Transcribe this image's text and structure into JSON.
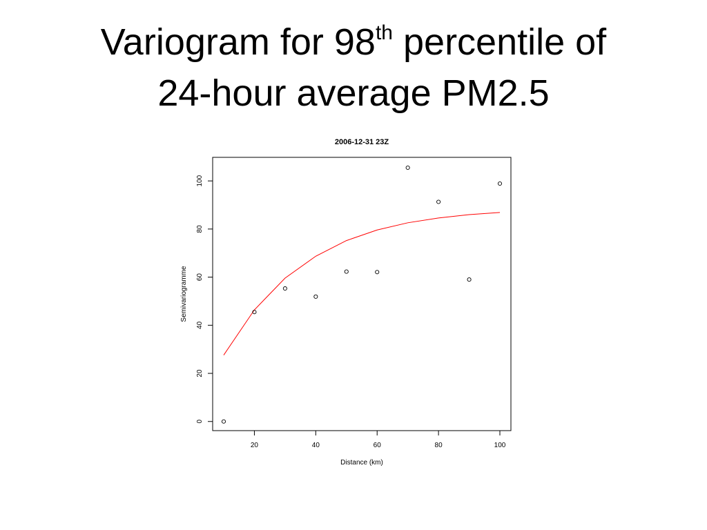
{
  "slide": {
    "title_part1": "Variogram for 98",
    "title_sup": "th",
    "title_part2": " percentile of",
    "title_line2": "24-hour average PM2.5"
  },
  "chart_data": {
    "type": "scatter",
    "title": "2006-12-31 23Z",
    "xlabel": "Distance (km)",
    "ylabel": "Semivariogramme",
    "xlim": [
      6.4,
      103.6
    ],
    "ylim": [
      -3.8,
      109.8
    ],
    "x_ticks": [
      20,
      40,
      60,
      80,
      100
    ],
    "y_ticks": [
      0,
      20,
      40,
      60,
      80,
      100
    ],
    "grid": false,
    "series": [
      {
        "type": "scatter",
        "marker": "open-circle",
        "color": "#000000",
        "x": [
          10,
          20,
          30,
          40,
          50,
          60,
          70,
          80,
          90,
          100
        ],
        "y": [
          0,
          45.5,
          55.3,
          51.9,
          62.3,
          62.1,
          105.5,
          91.3,
          59.0,
          98.9
        ]
      },
      {
        "type": "line",
        "color": "#ff0000",
        "x": [
          10,
          20,
          30,
          40,
          50,
          60,
          70,
          80,
          90,
          100
        ],
        "y": [
          27.6,
          46.4,
          59.6,
          68.7,
          75.2,
          79.6,
          82.6,
          84.6,
          86.0,
          86.9
        ]
      }
    ]
  }
}
